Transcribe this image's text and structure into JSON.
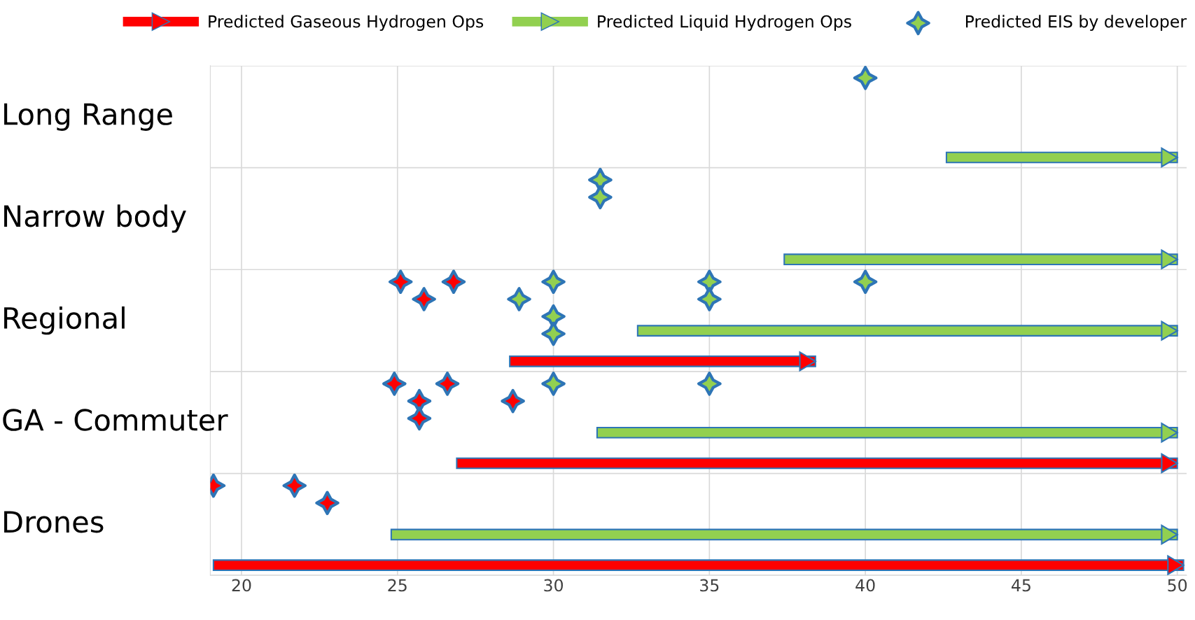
{
  "chart_data": {
    "type": "bar",
    "orientation": "horizontal",
    "categories": [
      "Long Range",
      "Narrow body",
      "Regional",
      "GA - Commuter",
      "Drones"
    ],
    "series": [
      {
        "name": "Predicted Gaseous Hydrogen Ops",
        "type": "bar",
        "color": "#ff0000",
        "base": [
          null,
          null,
          28.6,
          26.9,
          19.1
        ],
        "values": [
          null,
          null,
          9.8,
          23.1,
          31.1
        ]
      },
      {
        "name": "Predicted Liquid Hydrogen Ops",
        "type": "bar",
        "color": "#92d050",
        "base": [
          42.6,
          37.4,
          32.7,
          31.4,
          24.8
        ],
        "values": [
          7.4,
          12.6,
          17.3,
          18.6,
          25.2
        ]
      },
      {
        "name": "Predicted EIS by developer",
        "type": "scatter",
        "color": "#2e75b6",
        "x": [
          "Long Range",
          "Narrow body",
          "Narrow body",
          "Regional",
          "Regional",
          "Regional",
          "Regional",
          "Regional",
          "Regional",
          "Regional",
          "Regional",
          "Regional",
          "Regional",
          "GA - Commuter",
          "GA - Commuter",
          "GA - Commuter",
          "GA - Commuter",
          "GA - Commuter",
          "GA - Commuter",
          "GA - Commuter",
          "Drones",
          "Drones",
          "Drones"
        ],
        "values": [
          40,
          31.5,
          31.5,
          26.8,
          30,
          35,
          28.9,
          40,
          25.85,
          30,
          35,
          25.1,
          30,
          24.9,
          30,
          35,
          25.7,
          26.6,
          28.7,
          25.7,
          19.1,
          21.7,
          22.75
        ],
        "colors": [
          "#92d050",
          "#92d050",
          "#92d050",
          "#ff0000",
          "#92d050",
          "#92d050",
          "#92d050",
          "#92d050",
          "#ff0000",
          "#92d050",
          "#92d050",
          "#ff0000",
          "#92d050",
          "#ff0000",
          "#92d050",
          "#92d050",
          "#ff0000",
          "#ff0000",
          "#ff0000",
          "#ff0000",
          "#ff0000",
          "#ff0000",
          "#ff0000"
        ]
      }
    ],
    "xlim": [
      19,
      50.3
    ],
    "xticks": [
      20,
      25,
      30,
      35,
      40,
      45,
      50
    ],
    "grid": true,
    "legend": "top",
    "marker": "star"
  }
}
